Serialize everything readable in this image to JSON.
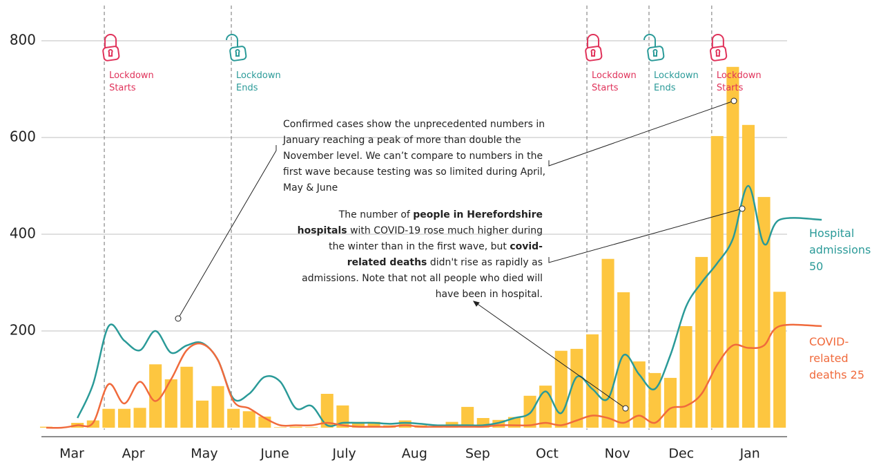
{
  "chart_data": {
    "type": "bar",
    "x": [
      0,
      1,
      2,
      3,
      4,
      5,
      6,
      7,
      8,
      9,
      10,
      11,
      12,
      13,
      14,
      15,
      16,
      17,
      18,
      19,
      20,
      21,
      22,
      23,
      24,
      25,
      26,
      27,
      28,
      29,
      30,
      31,
      32,
      33,
      34,
      35,
      36,
      37,
      38,
      39,
      40,
      41,
      42,
      43,
      44,
      45,
      46,
      47
    ],
    "values": [
      2,
      1,
      10,
      15,
      39,
      39,
      41,
      131,
      100,
      126,
      56,
      86,
      39,
      34,
      23,
      1,
      2,
      1,
      70,
      46,
      12,
      12,
      5,
      15,
      5,
      3,
      12,
      43,
      20,
      16,
      22,
      66,
      87,
      159,
      163,
      193,
      349,
      280,
      137,
      113,
      103,
      210,
      353,
      603,
      746,
      626,
      477,
      281
    ],
    "color": "#fdc640",
    "series": [
      {
        "name": "Hospital admissions 50",
        "color": "#2a9a98",
        "x": [
          2,
          3,
          4,
          5,
          6,
          7,
          8,
          9,
          10,
          11,
          12,
          13,
          14,
          15,
          16,
          17,
          18,
          19,
          20,
          21,
          22,
          23,
          24,
          25,
          26,
          27,
          28,
          29,
          30,
          31,
          32,
          33,
          34,
          35,
          36,
          37,
          38,
          39,
          40,
          41,
          42,
          43,
          44,
          45,
          46,
          47,
          49.7
        ],
        "values": [
          20,
          90,
          210,
          180,
          160,
          200,
          155,
          170,
          175,
          140,
          60,
          70,
          105,
          95,
          40,
          45,
          5,
          10,
          10,
          10,
          8,
          10,
          8,
          5,
          5,
          5,
          5,
          10,
          20,
          30,
          75,
          30,
          105,
          80,
          60,
          150,
          110,
          80,
          150,
          250,
          300,
          340,
          390,
          500,
          380,
          430,
          430
        ]
      },
      {
        "name": "COVID-related deaths 25",
        "color": "#f06a3c",
        "x": [
          0,
          1,
          2,
          3,
          4,
          5,
          6,
          7,
          8,
          9,
          10,
          11,
          12,
          13,
          14,
          15,
          16,
          17,
          18,
          19,
          20,
          21,
          22,
          23,
          24,
          25,
          26,
          27,
          28,
          29,
          30,
          31,
          32,
          33,
          34,
          35,
          36,
          37,
          38,
          39,
          40,
          41,
          42,
          43,
          44,
          45,
          46,
          47,
          49.7
        ],
        "values": [
          0,
          0,
          5,
          10,
          90,
          50,
          95,
          55,
          100,
          160,
          173,
          140,
          55,
          40,
          20,
          5,
          5,
          5,
          10,
          5,
          2,
          2,
          2,
          5,
          2,
          2,
          2,
          2,
          2,
          5,
          5,
          5,
          10,
          5,
          15,
          25,
          20,
          10,
          25,
          10,
          40,
          45,
          70,
          130,
          170,
          165,
          170,
          210,
          210
        ]
      }
    ],
    "xlim": [
      -0.31,
      47.48
    ],
    "xticks": [
      {
        "value": 1.64,
        "label": "Mar"
      },
      {
        "value": 5.58,
        "label": "Apr"
      },
      {
        "value": 10.13,
        "label": "May"
      },
      {
        "value": 14.65,
        "label": "June"
      },
      {
        "value": 19.1,
        "label": "July"
      },
      {
        "value": 23.6,
        "label": "Aug"
      },
      {
        "value": 27.65,
        "label": "Sep"
      },
      {
        "value": 32.1,
        "label": "Oct"
      },
      {
        "value": 36.6,
        "label": "Nov"
      },
      {
        "value": 40.7,
        "label": "Dec"
      },
      {
        "value": 45.1,
        "label": "Jan"
      }
    ],
    "ylim": [
      0,
      800
    ],
    "yticks": [
      200,
      400,
      600,
      800
    ],
    "grid": true,
    "events": [
      {
        "x": 3.72,
        "label": "Lockdown Starts",
        "kind": "start"
      },
      {
        "x": 11.86,
        "label": "Lockdown Ends",
        "kind": "end"
      },
      {
        "x": 34.65,
        "label": "Lockdown Starts",
        "kind": "start"
      },
      {
        "x": 38.63,
        "label": "Lockdown Ends",
        "kind": "end"
      },
      {
        "x": 42.65,
        "label": "Lockdown Starts",
        "kind": "start"
      }
    ],
    "annotations": [
      [
        "Confirmed cases show the unprecedented numbers in January reaching a peak of more than double the November level. We can’t compare to numbers in the first wave because testing was so limited during April, May & June"
      ],
      [
        "The number of ",
        "people in Herefordshire hospitals",
        " with COVID-19 rose much higher during the winter than in the first wave, but ",
        "covid-related deaths",
        " didn't rise as rapidly as admissions.  Note that not all people who died will have been in hospital."
      ]
    ]
  }
}
